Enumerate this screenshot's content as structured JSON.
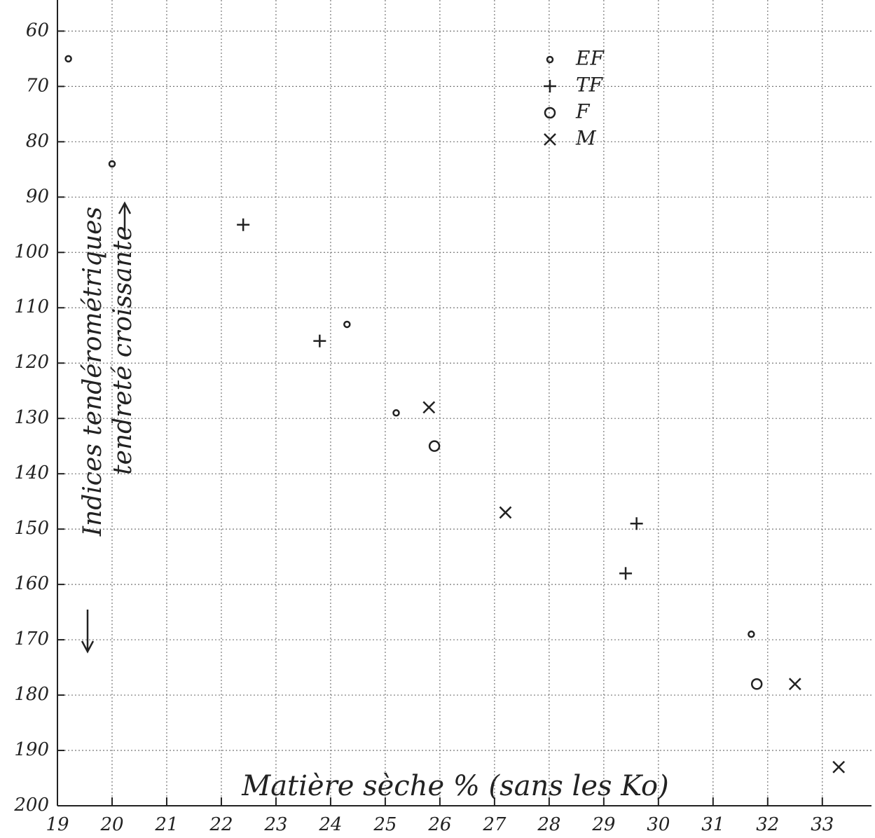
{
  "chart_data": {
    "type": "scatter",
    "xlabel": "Matière sèche % (sans les Ko)",
    "ylabel": "Indices tendérométriques",
    "annotation": "tendreté croissante",
    "xlim": [
      19,
      33.9
    ],
    "xticks": [
      19,
      20,
      21,
      22,
      23,
      24,
      25,
      26,
      27,
      28,
      29,
      30,
      31,
      32,
      33
    ],
    "ylim": [
      200,
      54
    ],
    "yticks": [
      60,
      70,
      80,
      90,
      100,
      110,
      120,
      130,
      140,
      150,
      160,
      170,
      180,
      190,
      200
    ],
    "grid": true,
    "series": [
      {
        "name": "EF",
        "marker": "c",
        "color": "#222222",
        "x": [
          19.2,
          20.0,
          24.3,
          25.2,
          31.7
        ],
        "values": [
          65,
          84,
          113,
          129,
          169
        ]
      },
      {
        "name": "TF",
        "marker": "+",
        "color": "#222222",
        "x": [
          22.4,
          23.8,
          29.6,
          29.4
        ],
        "values": [
          95,
          116,
          149,
          158
        ]
      },
      {
        "name": "F",
        "marker": "o",
        "color": "#222222",
        "x": [
          25.9,
          31.8
        ],
        "values": [
          135,
          178
        ]
      },
      {
        "name": "M",
        "marker": "x",
        "color": "#222222",
        "x": [
          25.8,
          27.2,
          32.5,
          33.3
        ],
        "values": [
          128,
          147,
          178,
          193
        ]
      }
    ]
  }
}
